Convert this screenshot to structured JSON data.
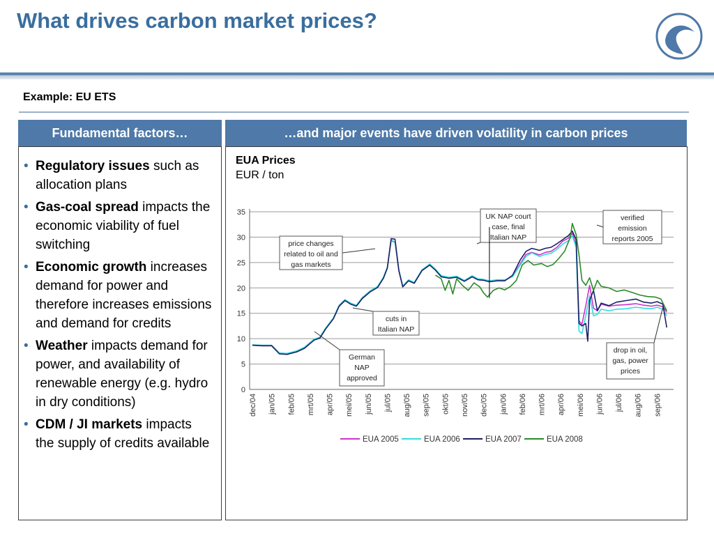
{
  "slide": {
    "title": "What drives carbon market prices?",
    "subtitle": "Example: EU ETS"
  },
  "left_panel": {
    "header": "Fundamental factors…",
    "bullets": [
      {
        "bold": "Regulatory issues",
        "rest": " such as allocation plans"
      },
      {
        "bold": "Gas-coal spread",
        "rest": " impacts the economic viability of fuel switching"
      },
      {
        "bold": "Economic growth",
        "rest": " increases demand for power and therefore increases emissions and demand for credits"
      },
      {
        "bold": "Weather",
        "rest": " impacts demand for power, and availability of renewable energy (e.g. hydro in dry conditions)"
      },
      {
        "bold": "CDM / JI markets",
        "rest": " impacts the supply of credits available"
      }
    ]
  },
  "right_panel": {
    "header": "…and major events have driven volatility in carbon prices"
  },
  "colors": {
    "brand": "#3a6e9e",
    "header_bg": "#4e79a8",
    "eua2005": "#cc33cc",
    "eua2006": "#33dddd",
    "eua2007": "#1a1f66",
    "eua2008": "#2a8a2a"
  },
  "chart_data": {
    "type": "line",
    "title": "EUA Prices",
    "subtitle": "EUR / ton",
    "ylim": [
      0,
      35
    ],
    "yticks": [
      0,
      5,
      10,
      15,
      20,
      25,
      30,
      35
    ],
    "grid": true,
    "legend_position": "bottom",
    "categories": [
      "dec/04",
      "jan/05",
      "feb/05",
      "mrt/05",
      "apr/05",
      "mei/05",
      "jun/05",
      "jul/05",
      "aug/05",
      "sep/05",
      "okt/05",
      "nov/05",
      "dec/05",
      "jan/06",
      "feb/06",
      "mrt/06",
      "apr/06",
      "mei/06",
      "jun/06",
      "jul/06",
      "aug/06",
      "sep/06"
    ],
    "series": [
      {
        "name": "EUA 2005",
        "color_key": "eua2005",
        "points": [
          [
            0,
            8.7
          ],
          [
            0.5,
            8.6
          ],
          [
            1,
            8.6
          ],
          [
            1.4,
            7.1
          ],
          [
            1.8,
            7.0
          ],
          [
            2.3,
            7.5
          ],
          [
            2.7,
            8.2
          ],
          [
            3.2,
            9.8
          ],
          [
            3.5,
            10.2
          ],
          [
            3.8,
            12.0
          ],
          [
            4.2,
            14.0
          ],
          [
            4.5,
            16.5
          ],
          [
            4.8,
            17.6
          ],
          [
            5.1,
            16.9
          ],
          [
            5.4,
            16.5
          ],
          [
            5.7,
            18.0
          ],
          [
            6.1,
            19.3
          ],
          [
            6.5,
            20.2
          ],
          [
            6.8,
            22.0
          ],
          [
            7.0,
            24.0
          ],
          [
            7.2,
            29.3
          ],
          [
            7.4,
            29.0
          ],
          [
            7.6,
            23.5
          ],
          [
            7.8,
            20.3
          ],
          [
            8.1,
            21.5
          ],
          [
            8.4,
            21.0
          ],
          [
            8.8,
            23.5
          ],
          [
            9.2,
            24.6
          ],
          [
            9.5,
            23.6
          ],
          [
            9.8,
            22.3
          ],
          [
            10.2,
            22.0
          ],
          [
            10.6,
            22.2
          ],
          [
            11.0,
            21.4
          ],
          [
            11.4,
            22.3
          ],
          [
            11.7,
            21.7
          ],
          [
            12.0,
            21.6
          ],
          [
            12.3,
            21.3
          ],
          [
            12.7,
            21.5
          ],
          [
            13.1,
            21.5
          ],
          [
            13.5,
            22.3
          ],
          [
            13.9,
            24.7
          ],
          [
            14.2,
            26.6
          ],
          [
            14.5,
            27.0
          ],
          [
            14.9,
            26.5
          ],
          [
            15.2,
            27.0
          ],
          [
            15.5,
            27.2
          ],
          [
            15.8,
            28.0
          ],
          [
            16.1,
            29.2
          ],
          [
            16.4,
            29.8
          ],
          [
            16.6,
            30.8
          ],
          [
            16.8,
            28.5
          ],
          [
            16.95,
            13.5
          ],
          [
            17.1,
            12.8
          ],
          [
            17.3,
            16.5
          ],
          [
            17.5,
            20.5
          ],
          [
            17.7,
            16.0
          ],
          [
            17.9,
            15.5
          ],
          [
            18.1,
            16.8
          ],
          [
            18.5,
            16.4
          ],
          [
            18.9,
            16.6
          ],
          [
            19.4,
            16.7
          ],
          [
            19.9,
            16.9
          ],
          [
            20.3,
            16.6
          ],
          [
            20.7,
            16.4
          ],
          [
            21.0,
            16.6
          ],
          [
            21.3,
            16.3
          ],
          [
            21.5,
            15.2
          ]
        ]
      },
      {
        "name": "EUA 2006",
        "color_key": "eua2006",
        "points": [
          [
            0,
            8.8
          ],
          [
            0.5,
            8.7
          ],
          [
            1,
            8.7
          ],
          [
            1.4,
            7.2
          ],
          [
            1.8,
            7.1
          ],
          [
            2.3,
            7.6
          ],
          [
            2.7,
            8.3
          ],
          [
            3.2,
            9.9
          ],
          [
            3.5,
            10.3
          ],
          [
            3.8,
            12.1
          ],
          [
            4.2,
            14.1
          ],
          [
            4.5,
            16.6
          ],
          [
            4.8,
            17.7
          ],
          [
            5.1,
            17.0
          ],
          [
            5.4,
            16.6
          ],
          [
            5.7,
            18.1
          ],
          [
            6.1,
            19.4
          ],
          [
            6.5,
            20.3
          ],
          [
            6.8,
            22.1
          ],
          [
            7.0,
            24.1
          ],
          [
            7.2,
            29.4
          ],
          [
            7.4,
            29.1
          ],
          [
            7.6,
            23.6
          ],
          [
            7.8,
            20.4
          ],
          [
            8.1,
            21.6
          ],
          [
            8.4,
            21.1
          ],
          [
            8.8,
            23.6
          ],
          [
            9.2,
            24.7
          ],
          [
            9.5,
            23.7
          ],
          [
            9.8,
            22.4
          ],
          [
            10.2,
            22.1
          ],
          [
            10.6,
            22.3
          ],
          [
            11.0,
            21.5
          ],
          [
            11.4,
            22.4
          ],
          [
            11.7,
            21.8
          ],
          [
            12.0,
            21.7
          ],
          [
            12.3,
            21.4
          ],
          [
            12.7,
            21.6
          ],
          [
            13.1,
            21.6
          ],
          [
            13.5,
            22.2
          ],
          [
            13.9,
            24.5
          ],
          [
            14.2,
            26.2
          ],
          [
            14.5,
            26.9
          ],
          [
            14.9,
            26.2
          ],
          [
            15.2,
            26.6
          ],
          [
            15.5,
            26.8
          ],
          [
            15.8,
            27.6
          ],
          [
            16.1,
            28.6
          ],
          [
            16.4,
            29.3
          ],
          [
            16.6,
            30.3
          ],
          [
            16.8,
            28.0
          ],
          [
            16.95,
            11.5
          ],
          [
            17.1,
            11.0
          ],
          [
            17.3,
            14.5
          ],
          [
            17.5,
            18.5
          ],
          [
            17.7,
            14.5
          ],
          [
            17.9,
            14.8
          ],
          [
            18.1,
            15.8
          ],
          [
            18.5,
            15.5
          ],
          [
            18.9,
            15.8
          ],
          [
            19.4,
            15.9
          ],
          [
            19.9,
            16.2
          ],
          [
            20.3,
            16.0
          ],
          [
            20.7,
            15.9
          ],
          [
            21.0,
            16.2
          ],
          [
            21.3,
            15.8
          ],
          [
            21.5,
            14.5
          ]
        ]
      },
      {
        "name": "EUA 2007",
        "color_key": "eua2007",
        "points": [
          [
            0,
            8.7
          ],
          [
            0.5,
            8.6
          ],
          [
            1,
            8.6
          ],
          [
            1.4,
            7.0
          ],
          [
            1.8,
            6.9
          ],
          [
            2.3,
            7.4
          ],
          [
            2.7,
            8.1
          ],
          [
            3.2,
            9.7
          ],
          [
            3.5,
            10.1
          ],
          [
            3.8,
            11.9
          ],
          [
            4.2,
            13.9
          ],
          [
            4.5,
            16.4
          ],
          [
            4.8,
            17.5
          ],
          [
            5.1,
            16.8
          ],
          [
            5.4,
            16.4
          ],
          [
            5.7,
            17.9
          ],
          [
            6.1,
            19.2
          ],
          [
            6.5,
            20.1
          ],
          [
            6.8,
            21.9
          ],
          [
            7.0,
            23.9
          ],
          [
            7.2,
            29.7
          ],
          [
            7.4,
            29.6
          ],
          [
            7.6,
            23.4
          ],
          [
            7.8,
            20.2
          ],
          [
            8.1,
            21.4
          ],
          [
            8.4,
            20.9
          ],
          [
            8.8,
            23.4
          ],
          [
            9.2,
            24.5
          ],
          [
            9.5,
            23.5
          ],
          [
            9.8,
            22.2
          ],
          [
            10.2,
            21.9
          ],
          [
            10.6,
            22.1
          ],
          [
            11.0,
            21.3
          ],
          [
            11.4,
            22.2
          ],
          [
            11.7,
            21.6
          ],
          [
            12.0,
            21.5
          ],
          [
            12.3,
            21.2
          ],
          [
            12.7,
            21.4
          ],
          [
            13.1,
            21.4
          ],
          [
            13.5,
            22.5
          ],
          [
            13.9,
            25.5
          ],
          [
            14.2,
            27.2
          ],
          [
            14.5,
            27.8
          ],
          [
            14.9,
            27.4
          ],
          [
            15.2,
            27.8
          ],
          [
            15.5,
            28.0
          ],
          [
            15.8,
            28.7
          ],
          [
            16.1,
            29.5
          ],
          [
            16.4,
            30.3
          ],
          [
            16.6,
            31.2
          ],
          [
            16.8,
            29.5
          ],
          [
            16.95,
            13.0
          ],
          [
            17.1,
            12.5
          ],
          [
            17.3,
            13.0
          ],
          [
            17.4,
            9.5
          ],
          [
            17.5,
            17.5
          ],
          [
            17.7,
            19.5
          ],
          [
            17.9,
            15.5
          ],
          [
            18.1,
            17.0
          ],
          [
            18.5,
            16.5
          ],
          [
            18.9,
            17.2
          ],
          [
            19.4,
            17.5
          ],
          [
            19.9,
            17.8
          ],
          [
            20.3,
            17.2
          ],
          [
            20.7,
            17.0
          ],
          [
            21.0,
            17.3
          ],
          [
            21.3,
            16.8
          ],
          [
            21.5,
            12.2
          ]
        ]
      },
      {
        "name": "EUA 2008",
        "color_key": "eua2008",
        "points": [
          [
            9.5,
            22.5
          ],
          [
            9.8,
            21.8
          ],
          [
            10.0,
            19.5
          ],
          [
            10.2,
            21.5
          ],
          [
            10.4,
            18.8
          ],
          [
            10.6,
            21.8
          ],
          [
            10.9,
            20.5
          ],
          [
            11.2,
            19.5
          ],
          [
            11.5,
            21.0
          ],
          [
            11.8,
            20.2
          ],
          [
            12.0,
            19.0
          ],
          [
            12.2,
            18.2
          ],
          [
            12.5,
            19.5
          ],
          [
            12.8,
            20.0
          ],
          [
            13.1,
            19.6
          ],
          [
            13.4,
            20.3
          ],
          [
            13.7,
            21.5
          ],
          [
            14.0,
            24.5
          ],
          [
            14.3,
            25.4
          ],
          [
            14.6,
            24.5
          ],
          [
            15.0,
            24.8
          ],
          [
            15.3,
            24.2
          ],
          [
            15.6,
            24.6
          ],
          [
            15.9,
            25.8
          ],
          [
            16.2,
            27.2
          ],
          [
            16.5,
            30.0
          ],
          [
            16.6,
            32.7
          ],
          [
            16.8,
            30.5
          ],
          [
            16.95,
            26.5
          ],
          [
            17.1,
            21.5
          ],
          [
            17.3,
            20.5
          ],
          [
            17.5,
            22.0
          ],
          [
            17.7,
            19.5
          ],
          [
            17.9,
            21.5
          ],
          [
            18.1,
            20.3
          ],
          [
            18.5,
            20.0
          ],
          [
            18.9,
            19.3
          ],
          [
            19.3,
            19.6
          ],
          [
            19.7,
            19.1
          ],
          [
            20.1,
            18.6
          ],
          [
            20.5,
            18.3
          ],
          [
            20.9,
            18.2
          ],
          [
            21.2,
            17.8
          ],
          [
            21.5,
            15.5
          ]
        ]
      }
    ],
    "annotations": [
      {
        "text": [
          "price changes",
          "related to oil and",
          "gas markets"
        ],
        "at": [
          7.1,
          27.5
        ]
      },
      {
        "text": [
          "UK NAP court",
          "case, final",
          "Italian NAP"
        ],
        "at": [
          12.8,
          24.5
        ]
      },
      {
        "text": [
          "verified",
          "emission",
          "reports 2005"
        ],
        "at": [
          16.9,
          30.0
        ]
      },
      {
        "text": [
          "cuts in",
          "Italian NAP"
        ],
        "at": [
          5.2,
          16.0
        ]
      },
      {
        "text": [
          "German",
          "NAP",
          "approved"
        ],
        "at": [
          3.6,
          11.5
        ]
      },
      {
        "text": [
          "drop in oil,",
          "gas, power",
          "prices"
        ],
        "at": [
          21.0,
          15.5
        ]
      }
    ]
  }
}
